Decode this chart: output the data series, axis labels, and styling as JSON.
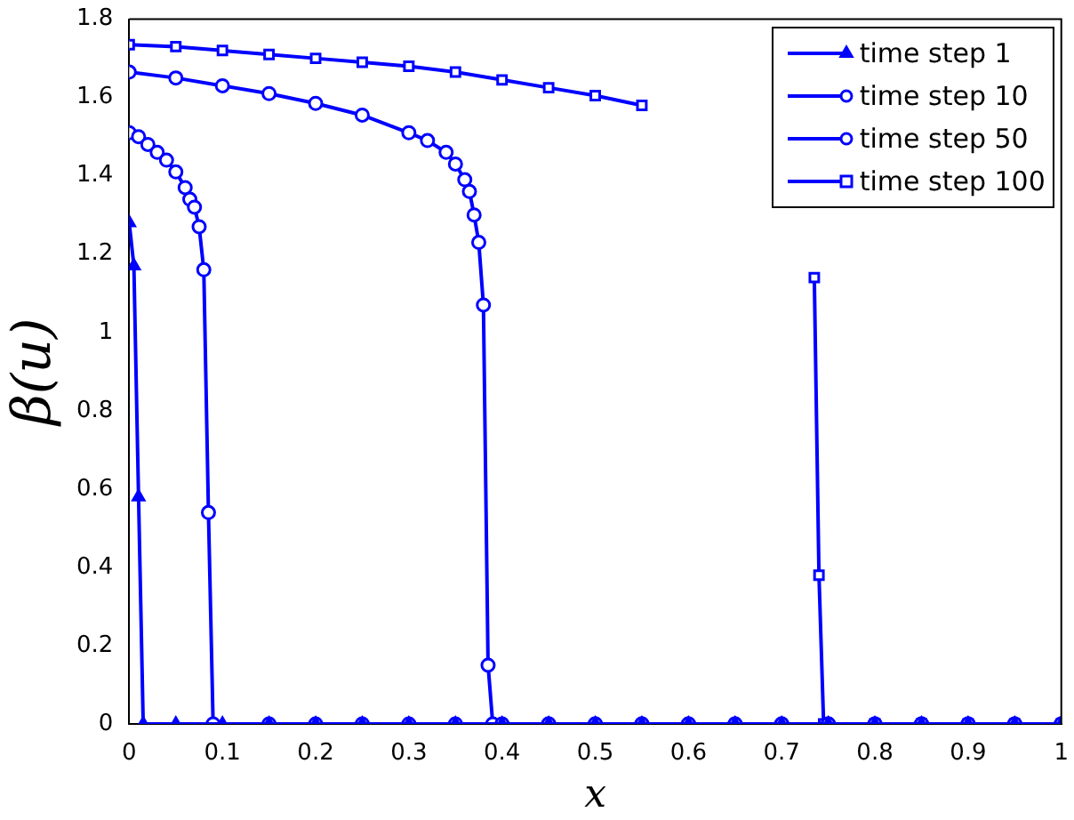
{
  "chart_data": {
    "type": "line",
    "xlabel": "x",
    "ylabel": "β(u)",
    "xlim": [
      0,
      1
    ],
    "ylim": [
      0,
      1.8
    ],
    "xticks": [
      0,
      0.1,
      0.2,
      0.3,
      0.4,
      0.5,
      0.6,
      0.7,
      0.8,
      0.9,
      1
    ],
    "yticks": [
      0,
      0.2,
      0.4,
      0.6,
      0.8,
      1,
      1.2,
      1.4,
      1.6,
      1.8
    ],
    "grid": false,
    "legend": "top right",
    "line_style": "solid",
    "series": [
      {
        "name": "time step 1",
        "color": "#0000ff",
        "marker": "triangle",
        "x": [
          0,
          0.005,
          0.01,
          0.015,
          0.05,
          0.1,
          0.15,
          0.2,
          0.25,
          0.3,
          0.35,
          0.4,
          0.45,
          0.5,
          0.55,
          0.6,
          0.65,
          0.7,
          0.75,
          0.8,
          0.85,
          0.9,
          0.95,
          1
        ],
        "values": [
          1.28,
          1.17,
          0.58,
          0,
          0,
          0,
          0,
          0,
          0,
          0,
          0,
          0,
          0,
          0,
          0,
          0,
          0,
          0,
          0,
          0,
          0,
          0,
          0,
          0
        ]
      },
      {
        "name": "time step 10",
        "color": "#0000ff",
        "marker": "circle",
        "x": [
          0,
          0.01,
          0.02,
          0.03,
          0.04,
          0.05,
          0.06,
          0.065,
          0.07,
          0.075,
          0.08,
          0.085,
          0.09,
          0.15,
          0.2,
          0.25,
          0.3,
          0.35,
          0.4,
          0.45,
          0.5,
          0.55,
          0.6,
          0.65,
          0.7,
          0.75,
          0.8,
          0.85,
          0.9,
          0.95,
          1
        ],
        "values": [
          1.51,
          1.5,
          1.48,
          1.46,
          1.44,
          1.41,
          1.37,
          1.34,
          1.32,
          1.27,
          1.16,
          0.54,
          0,
          0,
          0,
          0,
          0,
          0,
          0,
          0,
          0,
          0,
          0,
          0,
          0,
          0,
          0,
          0,
          0,
          0,
          0
        ]
      },
      {
        "name": "time step 50",
        "color": "#0000ff",
        "marker": "circle",
        "x": [
          0,
          0.05,
          0.1,
          0.15,
          0.2,
          0.25,
          0.3,
          0.32,
          0.34,
          0.35,
          0.36,
          0.365,
          0.37,
          0.375,
          0.38,
          0.385,
          0.39,
          0.45,
          0.5,
          0.55,
          0.6,
          0.65,
          0.7,
          0.75,
          0.8,
          0.85,
          0.9,
          0.95,
          1
        ],
        "values": [
          1.665,
          1.65,
          1.63,
          1.61,
          1.585,
          1.555,
          1.51,
          1.49,
          1.46,
          1.43,
          1.39,
          1.36,
          1.3,
          1.23,
          1.07,
          0.15,
          0,
          0,
          0,
          0,
          0,
          0,
          0,
          0,
          0,
          0,
          0,
          0,
          0
        ]
      },
      {
        "name": "time step 100",
        "color": "#0000ff",
        "marker": "square",
        "x": [
          0,
          0.05,
          0.1,
          0.15,
          0.2,
          0.25,
          0.3,
          0.35,
          0.4,
          0.45,
          0.5,
          0.55,
          0.6,
          0.735,
          0.74,
          0.745,
          0.8,
          0.85,
          0.9,
          0.95,
          1
        ],
        "values": [
          1.735,
          1.73,
          1.72,
          1.71,
          1.7,
          1.69,
          1.68,
          1.665,
          1.645,
          1.625,
          1.605,
          1.58,
          null,
          1.14,
          0.38,
          0,
          0,
          0,
          0,
          0,
          0
        ]
      }
    ]
  }
}
